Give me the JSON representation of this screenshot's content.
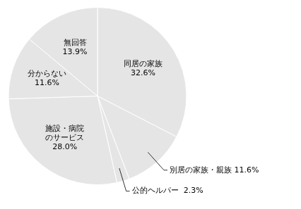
{
  "chart_data": {
    "type": "pie",
    "categories": [
      "同居の家族",
      "別居の家族・親族",
      "公的ヘルパー",
      "施設・病院\nのサービス",
      "分からない",
      "無回答"
    ],
    "values": [
      32.6,
      11.6,
      2.3,
      28.0,
      11.6,
      13.9
    ],
    "value_labels": [
      "同居の家族\n32.6%",
      "別居の家族・親族 11.6%",
      "公的ヘルパー  2.3%",
      "施設・病院\nのサービス\n28.0%",
      "分からない\n11.6%",
      "無回答\n13.9%"
    ],
    "data_labels": true
  }
}
